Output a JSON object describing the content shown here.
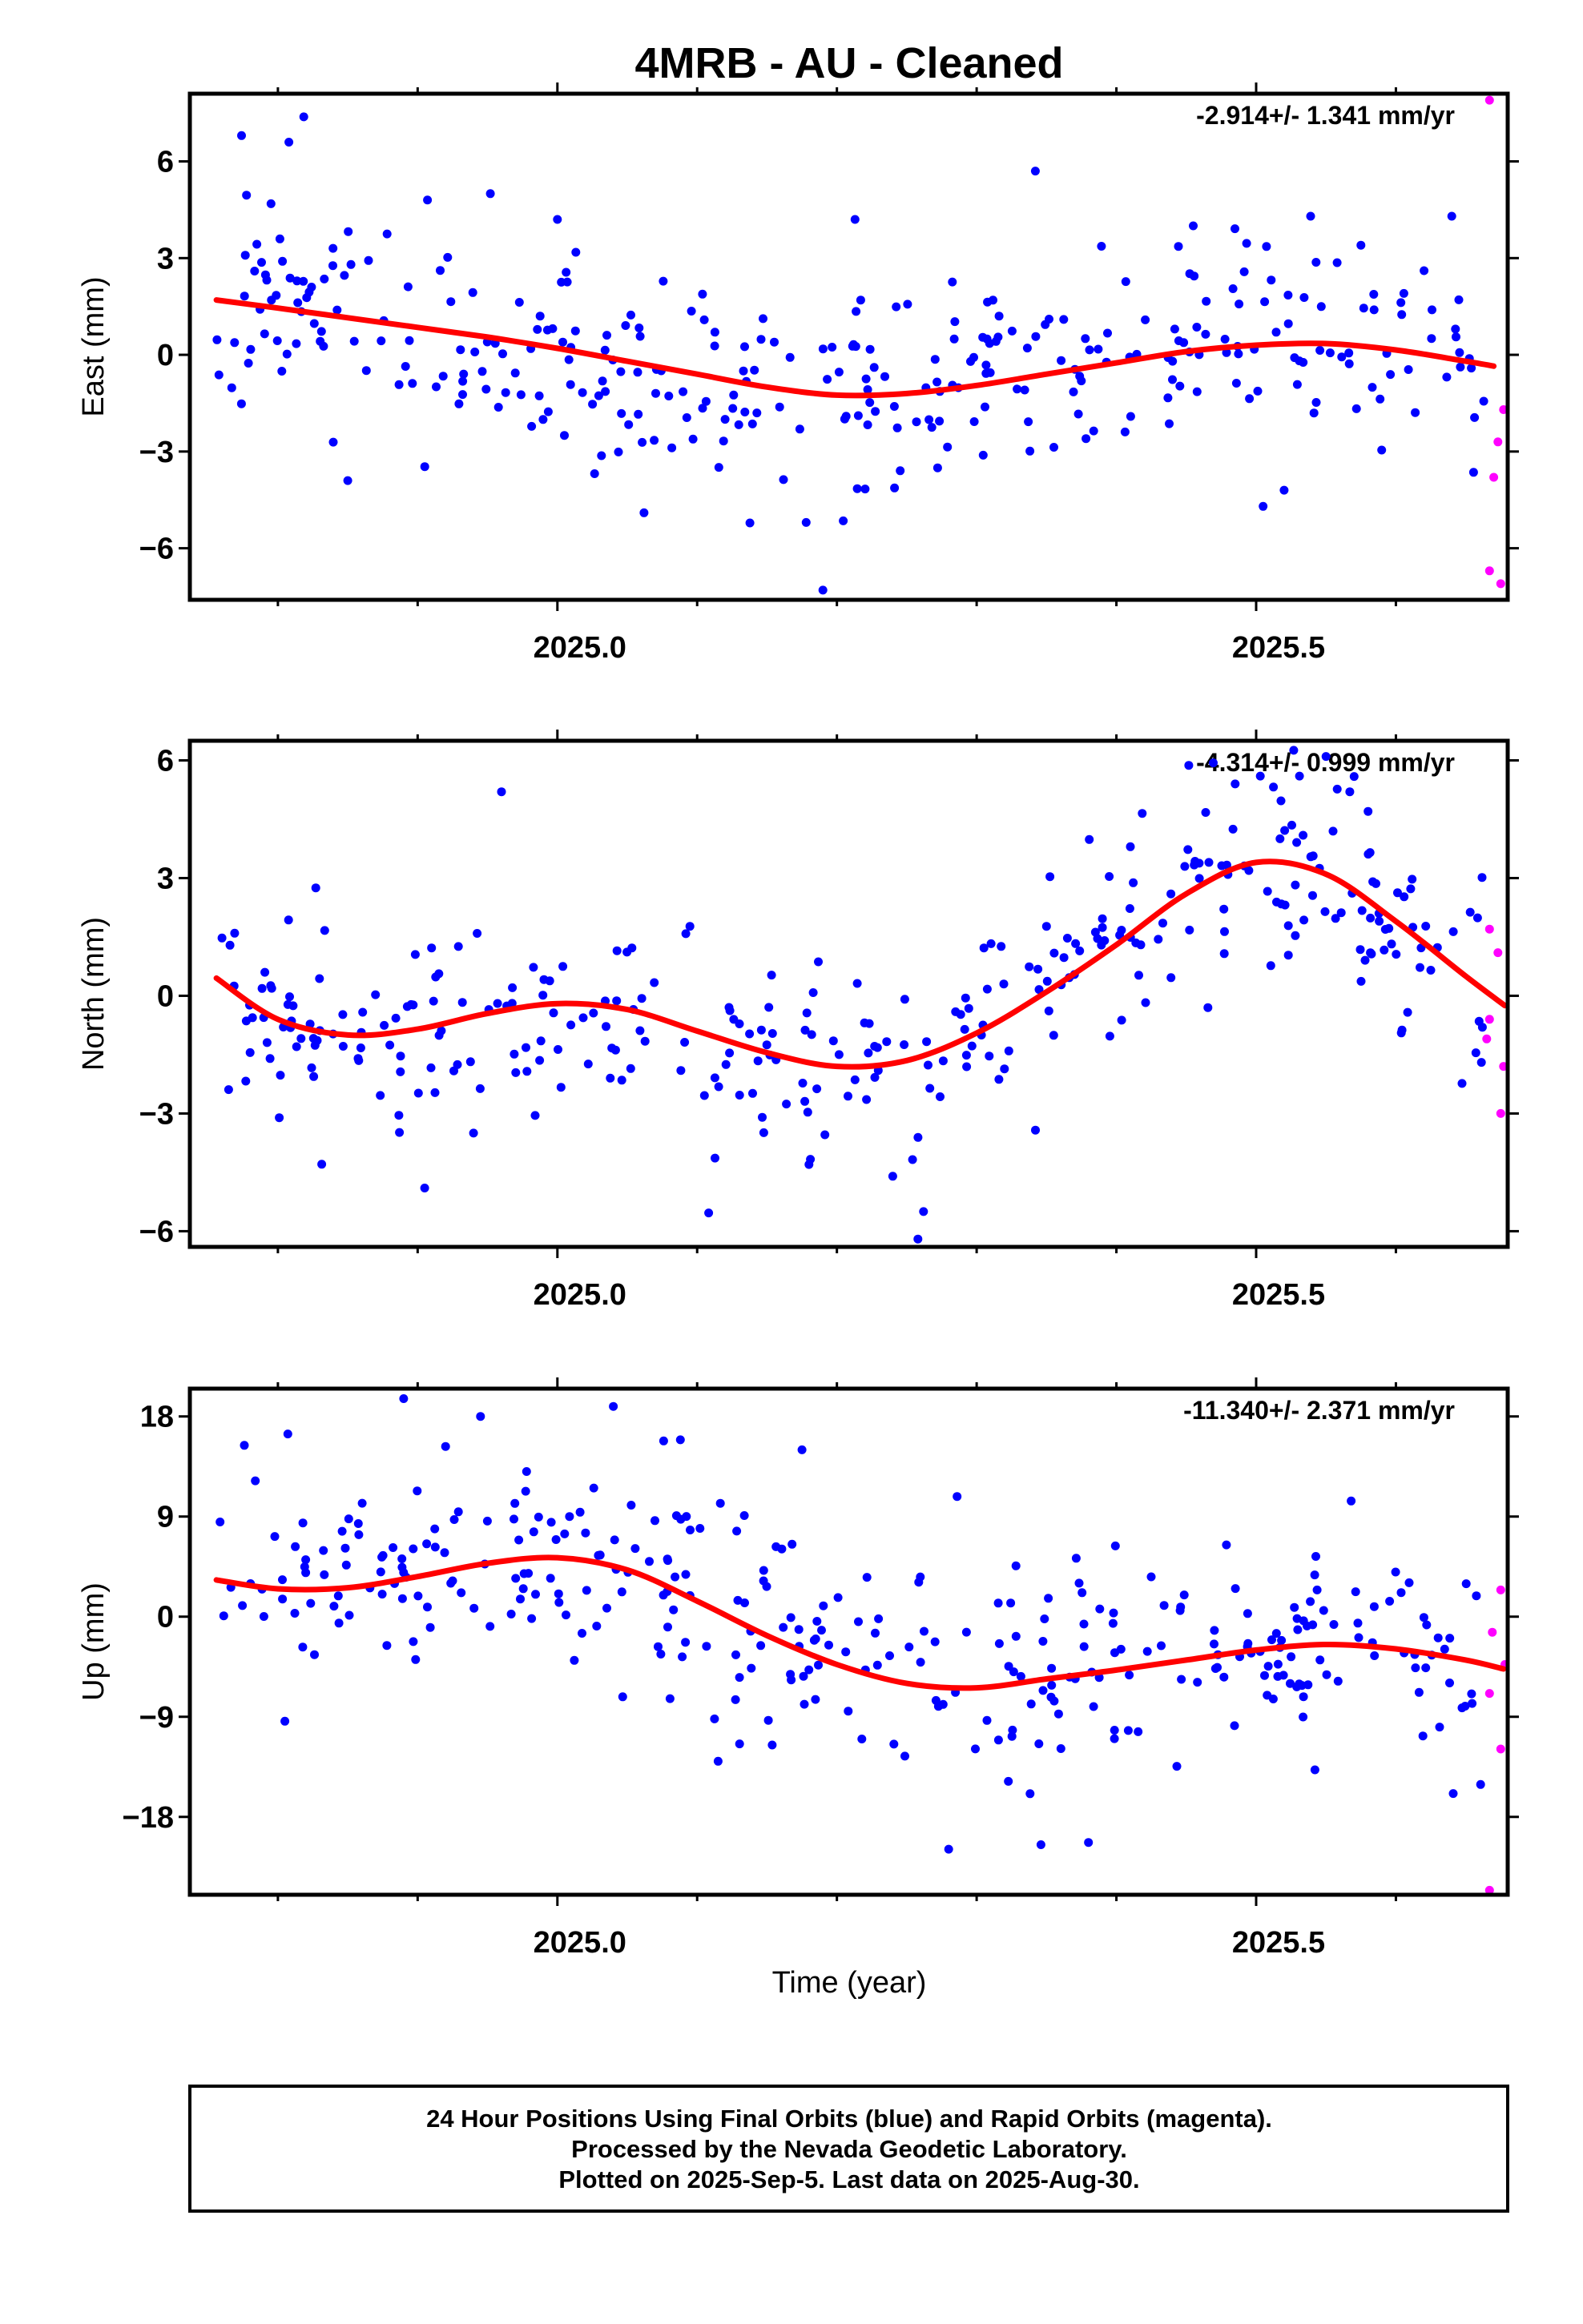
{
  "title": "4MRB  - AU - Cleaned",
  "xlabel": "Time (year)",
  "footer": [
    "24 Hour Positions Using Final Orbits (blue) and Rapid Orbits (magenta).",
    "Processed by the Nevada Geodetic Laboratory.",
    "Plotted on 2025-Sep-5. Last data on 2025-Aug-30."
  ],
  "colors": {
    "final": "#0000ff",
    "rapid": "#ff00ff",
    "fit": "#ff0000",
    "frame": "#000000"
  },
  "chart_data": [
    {
      "type": "scatter",
      "ylabel": "East (mm)",
      "rate": "-2.914+/- 1.341 mm/yr",
      "xlim": [
        2024.737,
        2025.68
      ],
      "ylim": [
        -7.6,
        8.1
      ],
      "yticks": [
        -6,
        -3,
        0,
        3,
        6
      ],
      "ytick_labels": [
        "−6",
        "−3",
        "0",
        "3",
        "6"
      ],
      "xticks": [
        2025.0,
        2025.5
      ],
      "xtick_labels": [
        "2025.0",
        "2025.5"
      ],
      "x_minor_ticks": [
        2024.8,
        2024.9,
        2025.1,
        2025.2,
        2025.3,
        2025.4,
        2025.6
      ],
      "fit": {
        "x": [
          2024.756,
          2024.8,
          2024.85,
          2024.9,
          2024.95,
          2025.0,
          2025.05,
          2025.1,
          2025.15,
          2025.2,
          2025.25,
          2025.3,
          2025.35,
          2025.4,
          2025.45,
          2025.5,
          2025.55,
          2025.6,
          2025.65,
          2025.67
        ],
        "y": [
          1.7,
          1.45,
          1.15,
          0.85,
          0.55,
          0.2,
          -0.2,
          -0.6,
          -1.0,
          -1.25,
          -1.2,
          -0.95,
          -0.6,
          -0.25,
          0.1,
          0.3,
          0.35,
          0.15,
          -0.2,
          -0.35
        ]
      },
      "series": [
        {
          "name": "Final Orbits",
          "color": "#0000ff",
          "seed": 11,
          "n": 330,
          "x_range": [
            2024.756,
            2025.663
          ],
          "noise": 1.7,
          "extra": [
            [
              2024.774,
              6.8
            ],
            [
              2024.907,
              4.8
            ],
            [
              2024.952,
              5.0
            ],
            [
              2025.0,
              4.2
            ],
            [
              2025.12,
              -2.0
            ],
            [
              2025.178,
              -5.2
            ],
            [
              2025.19,
              -7.3
            ],
            [
              2025.213,
              4.2
            ],
            [
              2025.342,
              5.7
            ],
            [
              2025.455,
              4.0
            ],
            [
              2025.539,
              4.3
            ],
            [
              2025.575,
              3.4
            ],
            [
              2025.64,
              4.3
            ],
            [
              2024.85,
              -3.9
            ],
            [
              2025.062,
              -4.9
            ],
            [
              2025.505,
              -4.7
            ],
            [
              2025.52,
              -4.2
            ]
          ]
        },
        {
          "name": "Rapid Orbits",
          "color": "#ff00ff",
          "points": [
            [
              2025.667,
              7.9
            ],
            [
              2025.677,
              -1.7
            ],
            [
              2025.673,
              -2.7
            ],
            [
              2025.67,
              -3.8
            ],
            [
              2025.667,
              -6.7
            ],
            [
              2025.675,
              -7.1
            ]
          ]
        }
      ]
    },
    {
      "type": "scatter",
      "ylabel": "North (mm)",
      "rate": "-4.314+/- 0.999 mm/yr",
      "xlim": [
        2024.737,
        2025.68
      ],
      "ylim": [
        -6.4,
        6.5
      ],
      "yticks": [
        -6,
        -3,
        0,
        3,
        6
      ],
      "ytick_labels": [
        "−6",
        "−3",
        "0",
        "3",
        "6"
      ],
      "xticks": [
        2025.0,
        2025.5
      ],
      "xtick_labels": [
        "2025.0",
        "2025.5"
      ],
      "x_minor_ticks": [
        2024.8,
        2024.9,
        2025.1,
        2025.2,
        2025.3,
        2025.4,
        2025.6
      ],
      "fit": {
        "x": [
          2024.756,
          2024.8,
          2024.85,
          2024.9,
          2024.95,
          2025.0,
          2025.05,
          2025.1,
          2025.15,
          2025.2,
          2025.25,
          2025.3,
          2025.35,
          2025.4,
          2025.45,
          2025.5,
          2025.55,
          2025.6,
          2025.65,
          2025.678
        ],
        "y": [
          0.45,
          -0.6,
          -1.0,
          -0.85,
          -0.45,
          -0.2,
          -0.35,
          -0.9,
          -1.45,
          -1.8,
          -1.65,
          -0.95,
          0.1,
          1.3,
          2.6,
          3.4,
          3.1,
          1.9,
          0.5,
          -0.25
        ]
      },
      "series": [
        {
          "name": "Final Orbits",
          "color": "#0000ff",
          "seed": 23,
          "n": 330,
          "x_range": [
            2024.756,
            2025.663
          ],
          "noise": 1.25,
          "extra": [
            [
              2024.96,
              5.2
            ],
            [
              2024.94,
              -3.5
            ],
            [
              2024.905,
              -4.9
            ],
            [
              2025.262,
              -5.5
            ],
            [
              2025.258,
              -6.2
            ],
            [
              2025.485,
              5.4
            ],
            [
              2025.503,
              5.6
            ],
            [
              2025.531,
              5.6
            ],
            [
              2025.55,
              6.1
            ],
            [
              2025.567,
              5.2
            ],
            [
              2025.41,
              3.8
            ],
            [
              2025.24,
              -4.6
            ],
            [
              2025.18,
              -4.3
            ]
          ]
        },
        {
          "name": "Rapid Orbits",
          "color": "#ff00ff",
          "points": [
            [
              2025.667,
              1.7
            ],
            [
              2025.673,
              1.1
            ],
            [
              2025.667,
              -0.6
            ],
            [
              2025.665,
              -1.1
            ],
            [
              2025.677,
              -1.8
            ],
            [
              2025.675,
              -3.0
            ]
          ]
        }
      ]
    },
    {
      "type": "scatter",
      "ylabel": "Up (mm)",
      "rate": "-11.340+/- 2.371 mm/yr",
      "xlim": [
        2024.737,
        2025.68
      ],
      "ylim": [
        -25.0,
        20.5
      ],
      "yticks": [
        -18,
        -9,
        0,
        9,
        18
      ],
      "ytick_labels": [
        "−18",
        "−9",
        "0",
        "9",
        "18"
      ],
      "xticks": [
        2025.0,
        2025.5
      ],
      "xtick_labels": [
        "2025.0",
        "2025.5"
      ],
      "x_minor_ticks": [
        2024.8,
        2024.9,
        2025.1,
        2025.2,
        2025.3,
        2025.4,
        2025.6
      ],
      "fit": {
        "x": [
          2024.756,
          2024.8,
          2024.85,
          2024.9,
          2024.95,
          2025.0,
          2025.05,
          2025.1,
          2025.15,
          2025.2,
          2025.25,
          2025.3,
          2025.35,
          2025.4,
          2025.45,
          2025.5,
          2025.55,
          2025.6,
          2025.65,
          2025.677
        ],
        "y": [
          3.3,
          2.5,
          2.6,
          3.6,
          4.8,
          5.3,
          4.2,
          1.4,
          -1.7,
          -4.3,
          -6.0,
          -6.4,
          -5.6,
          -4.8,
          -3.9,
          -3.0,
          -2.5,
          -2.9,
          -3.9,
          -4.7
        ]
      },
      "series": [
        {
          "name": "Final Orbits",
          "color": "#0000ff",
          "seed": 37,
          "n": 330,
          "x_range": [
            2024.756,
            2025.663
          ],
          "noise": 4.6,
          "extra": [
            [
              2024.776,
              15.4
            ],
            [
              2024.89,
              19.6
            ],
            [
              2024.92,
              15.3
            ],
            [
              2024.945,
              18.0
            ],
            [
              2025.04,
              18.9
            ],
            [
              2025.076,
              15.8
            ],
            [
              2025.088,
              15.9
            ],
            [
              2025.175,
              15.0
            ],
            [
              2025.286,
              10.8
            ],
            [
              2025.28,
              -20.9
            ],
            [
              2025.346,
              -20.5
            ],
            [
              2025.38,
              -20.3
            ],
            [
              2025.568,
              10.4
            ],
            [
              2024.805,
              -9.4
            ],
            [
              2025.115,
              -13.0
            ],
            [
              2025.641,
              -15.9
            ]
          ]
        },
        {
          "name": "Rapid Orbits",
          "color": "#ff00ff",
          "points": [
            [
              2025.675,
              2.4
            ],
            [
              2025.669,
              -1.4
            ],
            [
              2025.667,
              -6.9
            ],
            [
              2025.678,
              -4.3
            ],
            [
              2025.675,
              -11.9
            ],
            [
              2025.667,
              -24.6
            ]
          ]
        }
      ]
    }
  ]
}
